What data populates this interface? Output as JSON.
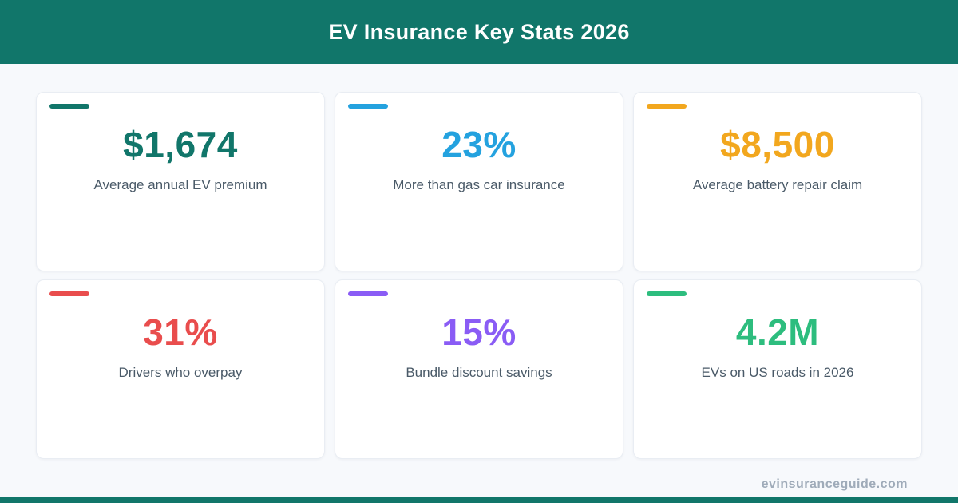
{
  "header": {
    "title": "EV Insurance Key Stats 2026"
  },
  "theme": {
    "header_bg": "#11766A",
    "page_bg": "#F7F9FC",
    "label_color": "#4A5A68",
    "footer_color": "#9FABB9",
    "bottom_bar": "#11766A"
  },
  "cards": [
    {
      "accent": "#11766A",
      "value": "$1,674",
      "label": "Average annual EV premium"
    },
    {
      "accent": "#24A2DF",
      "value": "23%",
      "label": "More than gas car insurance"
    },
    {
      "accent": "#F2A71E",
      "value": "$8,500",
      "label": "Average battery repair claim"
    },
    {
      "accent": "#E94D4D",
      "value": "31%",
      "label": "Drivers who overpay"
    },
    {
      "accent": "#8A5CF5",
      "value": "15%",
      "label": "Bundle discount savings"
    },
    {
      "accent": "#2DBD7E",
      "value": "4.2M",
      "label": "EVs on US roads in 2026"
    }
  ],
  "footer": {
    "site": "evinsuranceguide.com"
  },
  "chart_data": {
    "type": "table",
    "title": "EV Insurance Key Stats 2026",
    "stats": [
      {
        "value": "$1,674",
        "label": "Average annual EV premium"
      },
      {
        "value": "23%",
        "label": "More than gas car insurance"
      },
      {
        "value": "$8,500",
        "label": "Average battery repair claim"
      },
      {
        "value": "31%",
        "label": "Drivers who overpay"
      },
      {
        "value": "15%",
        "label": "Bundle discount savings"
      },
      {
        "value": "4.2M",
        "label": "EVs on US roads in 2026"
      }
    ]
  }
}
